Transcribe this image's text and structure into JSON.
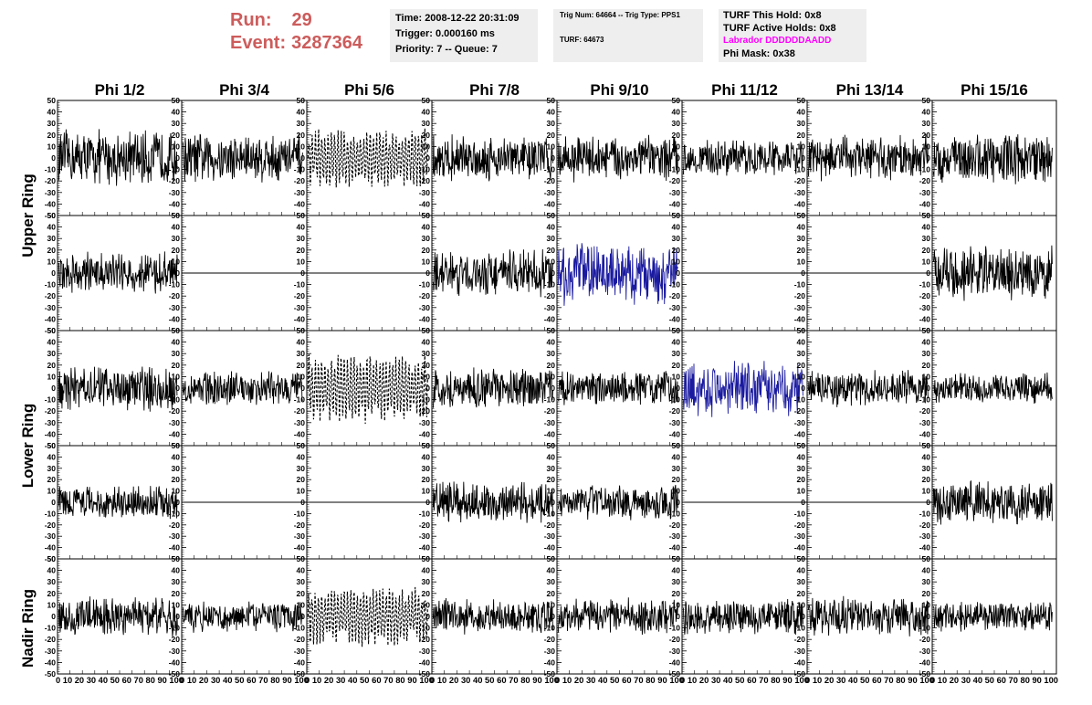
{
  "header": {
    "run_label": "Run:",
    "run_value": "29",
    "event_label": "Event:",
    "event_value": "3287364"
  },
  "info_time": {
    "time": "Time: 2008-12-22 20:31:09",
    "trigger": "Trigger: 0.000160 ms",
    "priority": "Priority: 7 -- Queue: 7"
  },
  "info_trig": {
    "trig": "Trig Num: 64664 -- Trig Type: PPS1",
    "turf": "TURF: 64673"
  },
  "info_turf": {
    "this_hold": "TURF This Hold: 0x8",
    "active_holds": "TURF Active Holds: 0x8",
    "labrador": "Labrador DDDDDDAADD",
    "phi_mask": "Phi Mask: 0x38"
  },
  "colors": {
    "header_red": "#cd5c5c",
    "labrador_magenta": "#ff00ff",
    "trace_black": "#000000",
    "trace_blue": "#1a1aa0",
    "box_grey": "#eeeeee"
  },
  "chart_data": {
    "type": "line",
    "columns": [
      "Phi 1/2",
      "Phi 3/4",
      "Phi 5/6",
      "Phi 7/8",
      "Phi 9/10",
      "Phi 11/12",
      "Phi 13/14",
      "Phi 15/16"
    ],
    "row_labels": [
      "Upper Ring",
      "Lower Ring",
      "Nadir Ring"
    ],
    "ylim": [
      -50,
      50
    ],
    "yticks": [
      "-50",
      "-40",
      "-30",
      "-20",
      "-10",
      "0",
      "10",
      "20",
      "30",
      "40",
      "50"
    ],
    "xlim": [
      0,
      100
    ],
    "xticks": [
      "0",
      "10",
      "20",
      "30",
      "40",
      "50",
      "60",
      "70",
      "80",
      "90",
      "100"
    ],
    "xtick_text": "0 10 20 30 40 50 60 70 80 90 100",
    "panels_rows": [
      [
        "noise",
        "noise",
        "dashed",
        "noise",
        "noise",
        "noise",
        "noise",
        "noise"
      ],
      [
        "noise",
        "flat",
        "flat",
        "noise",
        "blue",
        "flat",
        "flat",
        "noise"
      ],
      [
        "noise",
        "noise",
        "dashed",
        "noise",
        "noise",
        "blue",
        "noise",
        "noise"
      ],
      [
        "noise",
        "flat",
        "flat",
        "noise",
        "noise",
        "flat",
        "flat",
        "noise"
      ],
      [
        "noise",
        "noise",
        "dashed",
        "noise",
        "noise",
        "noise",
        "noise",
        "noise"
      ]
    ],
    "amplitude_rows": [
      [
        22,
        20,
        22,
        18,
        18,
        14,
        18,
        20
      ],
      [
        16,
        0,
        0,
        18,
        24,
        0,
        0,
        22
      ],
      [
        18,
        14,
        26,
        16,
        14,
        22,
        14,
        12
      ],
      [
        14,
        0,
        0,
        16,
        14,
        0,
        0,
        18
      ],
      [
        16,
        12,
        22,
        14,
        14,
        14,
        16,
        12
      ]
    ]
  }
}
